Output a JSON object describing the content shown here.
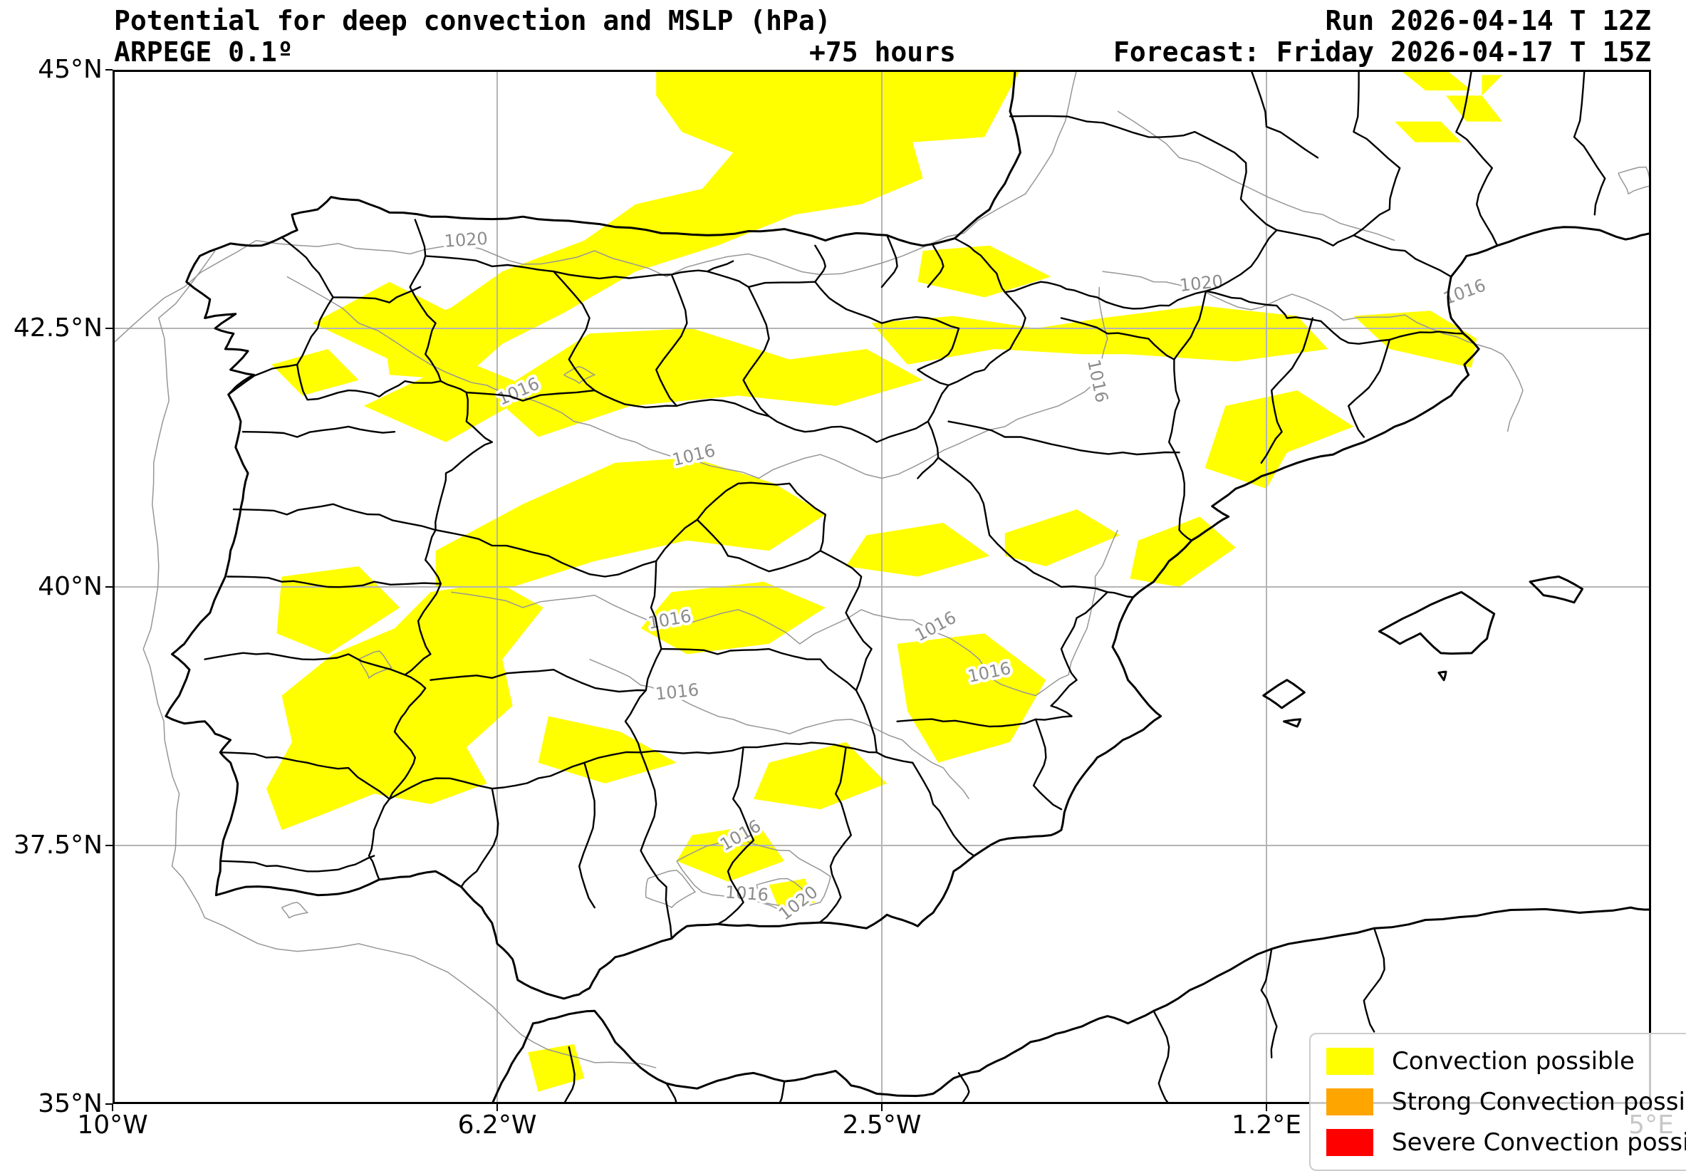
{
  "header": {
    "title": "Potential for deep convection and MSLP (hPa)",
    "model": "ARPEGE 0.1º",
    "lead_time": "+75 hours",
    "run": "Run 2026-04-14 T 12Z",
    "valid": "Forecast: Friday 2026-04-17 T 15Z"
  },
  "axes": {
    "lon_range": [
      -10,
      5
    ],
    "lat_range": [
      35,
      45
    ],
    "lon_ticks": [
      {
        "label": "10°W",
        "lon": -10
      },
      {
        "label": "6.2°W",
        "lon": -6.25
      },
      {
        "label": "2.5°W",
        "lon": -2.5
      },
      {
        "label": "1.2°E",
        "lon": 1.25
      },
      {
        "label": "5°E",
        "lon": 5
      }
    ],
    "lat_ticks": [
      {
        "label": "45°N",
        "lat": 45
      },
      {
        "label": "42.5°N",
        "lat": 42.5
      },
      {
        "label": "40°N",
        "lat": 40
      },
      {
        "label": "37.5°N",
        "lat": 37.5
      },
      {
        "label": "35°N",
        "lat": 35
      }
    ]
  },
  "legend": {
    "items": [
      {
        "label": "Convection possible",
        "color": "#ffff00"
      },
      {
        "label": "Strong Convection possible",
        "color": "#ffa500"
      },
      {
        "label": "Severe Convection possible",
        "color": "#ff0000"
      }
    ]
  },
  "map": {
    "colors": {
      "convection": "#ffff00",
      "isobar": "#969696",
      "isobar_label": "#8c8c8c",
      "boundary": "#000000",
      "grid": "#b4b4b4"
    },
    "grid": {
      "lons": [
        -6.25,
        -2.5,
        1.25
      ],
      "lats": [
        42.5,
        40,
        37.5
      ]
    },
    "isobar_labels": [
      {
        "text": "1020",
        "lon": -6.55,
        "lat": 43.3,
        "rot": -4
      },
      {
        "text": "1020",
        "lon": 0.62,
        "lat": 42.88,
        "rot": -6
      },
      {
        "text": "1016",
        "lon": -6.02,
        "lat": 41.84,
        "rot": -24
      },
      {
        "text": "1016",
        "lon": -4.32,
        "lat": 41.22,
        "rot": -14
      },
      {
        "text": "1016",
        "lon": -0.45,
        "lat": 41.98,
        "rot": 78
      },
      {
        "text": "1016",
        "lon": -4.56,
        "lat": 39.63,
        "rot": -10
      },
      {
        "text": "1016",
        "lon": -1.95,
        "lat": 39.57,
        "rot": -28
      },
      {
        "text": "1016",
        "lon": -1.44,
        "lat": 39.12,
        "rot": -12
      },
      {
        "text": "1016",
        "lon": -4.49,
        "lat": 38.93,
        "rot": -6
      },
      {
        "text": "1016",
        "lon": -3.85,
        "lat": 37.55,
        "rot": -30
      },
      {
        "text": "1016",
        "lon": -3.82,
        "lat": 36.98,
        "rot": 4
      },
      {
        "text": "1020",
        "lon": -3.28,
        "lat": 36.9,
        "rot": -38
      },
      {
        "text": "1016",
        "lon": 3.2,
        "lat": 42.8,
        "rot": -20
      }
    ],
    "isobars": [
      [
        [
          -10,
          42.35
        ],
        [
          -9.3,
          42.9
        ],
        [
          -8.6,
          43.35
        ],
        [
          -7.8,
          43.32
        ],
        [
          -7.1,
          43.22
        ],
        [
          -6.55,
          43.3
        ],
        [
          -6.0,
          43.12
        ],
        [
          -5.3,
          43.25
        ],
        [
          -4.6,
          43.0
        ],
        [
          -3.8,
          43.22
        ],
        [
          -3.1,
          43.02
        ],
        [
          -2.3,
          43.2
        ],
        [
          -1.7,
          43.42
        ],
        [
          -1.1,
          43.8
        ],
        [
          -0.78,
          44.35
        ],
        [
          -0.6,
          45.0
        ]
      ],
      [
        [
          -0.2,
          44.6
        ],
        [
          0.4,
          44.15
        ],
        [
          1.1,
          43.85
        ],
        [
          1.8,
          43.6
        ],
        [
          2.5,
          43.35
        ]
      ],
      [
        [
          -0.35,
          43.05
        ],
        [
          0.15,
          42.95
        ],
        [
          0.62,
          42.87
        ],
        [
          1.1,
          42.68
        ],
        [
          1.5,
          42.83
        ],
        [
          2.0,
          42.58
        ],
        [
          2.6,
          42.63
        ],
        [
          3.1,
          42.42
        ],
        [
          3.55,
          42.25
        ],
        [
          3.75,
          41.9
        ],
        [
          3.6,
          41.5
        ]
      ],
      [
        [
          -9.0,
          43.25
        ],
        [
          -9.55,
          42.6
        ],
        [
          -9.45,
          41.8
        ],
        [
          -9.6,
          41.0
        ],
        [
          -9.55,
          40.2
        ],
        [
          -9.7,
          39.4
        ],
        [
          -9.5,
          38.7
        ],
        [
          -9.35,
          38.0
        ],
        [
          -9.42,
          37.3
        ],
        [
          -9.1,
          36.8
        ],
        [
          -8.4,
          36.5
        ],
        [
          -7.6,
          36.55
        ],
        [
          -6.9,
          36.35
        ],
        [
          -6.3,
          35.95
        ],
        [
          -5.9,
          35.6
        ],
        [
          -5.3,
          35.4
        ],
        [
          -4.7,
          35.35
        ]
      ],
      [
        [
          -8.3,
          43.0
        ],
        [
          -7.6,
          42.55
        ],
        [
          -6.9,
          42.15
        ],
        [
          -6.35,
          41.95
        ],
        [
          -6.02,
          41.84
        ],
        [
          -5.5,
          41.6
        ],
        [
          -4.9,
          41.4
        ],
        [
          -4.32,
          41.22
        ],
        [
          -3.7,
          41.05
        ],
        [
          -3.1,
          41.28
        ],
        [
          -2.5,
          41.05
        ],
        [
          -1.9,
          41.32
        ],
        [
          -1.3,
          41.55
        ],
        [
          -0.78,
          41.75
        ],
        [
          -0.45,
          41.95
        ],
        [
          -0.3,
          42.4
        ],
        [
          -0.38,
          42.9
        ]
      ],
      [
        [
          -6.7,
          39.95
        ],
        [
          -6.0,
          39.8
        ],
        [
          -5.3,
          39.92
        ],
        [
          -4.56,
          39.63
        ],
        [
          -3.9,
          39.78
        ],
        [
          -3.3,
          39.45
        ],
        [
          -2.7,
          39.78
        ],
        [
          -2.2,
          39.68
        ],
        [
          -1.95,
          39.55
        ],
        [
          -1.55,
          39.3
        ],
        [
          -1.44,
          39.12
        ],
        [
          -1.0,
          38.95
        ],
        [
          -0.68,
          39.15
        ],
        [
          -0.5,
          39.6
        ],
        [
          -0.42,
          40.1
        ],
        [
          -0.2,
          40.55
        ]
      ],
      [
        [
          -5.35,
          39.3
        ],
        [
          -4.85,
          39.05
        ],
        [
          -4.49,
          38.93
        ],
        [
          -3.95,
          38.72
        ],
        [
          -3.4,
          38.58
        ],
        [
          -2.8,
          38.72
        ],
        [
          -2.3,
          38.52
        ],
        [
          -1.9,
          38.25
        ],
        [
          -1.65,
          37.95
        ]
      ],
      [
        [
          -4.5,
          37.35
        ],
        [
          -4.1,
          37.52
        ],
        [
          -3.85,
          37.55
        ],
        [
          -3.4,
          37.45
        ],
        [
          -3.0,
          37.2
        ],
        [
          -3.1,
          36.95
        ],
        [
          -3.5,
          36.88
        ],
        [
          -3.85,
          36.98
        ],
        [
          -4.25,
          37.05
        ],
        [
          -4.5,
          37.35
        ]
      ],
      [
        [
          -3.72,
          37.12
        ],
        [
          -3.42,
          37.18
        ],
        [
          -3.18,
          37.0
        ],
        [
          -3.35,
          36.88
        ],
        [
          -3.65,
          36.95
        ],
        [
          -3.72,
          37.12
        ]
      ],
      [
        [
          -5.6,
          42.05
        ],
        [
          -5.45,
          42.13
        ],
        [
          -5.3,
          42.05
        ],
        [
          -5.45,
          41.97
        ],
        [
          -5.6,
          42.05
        ]
      ],
      [
        [
          4.68,
          44.0
        ],
        [
          4.95,
          44.06
        ],
        [
          5.0,
          43.88
        ],
        [
          4.78,
          43.8
        ],
        [
          4.68,
          44.0
        ]
      ],
      [
        [
          -4.78,
          37.18
        ],
        [
          -4.5,
          37.26
        ],
        [
          -4.32,
          37.05
        ],
        [
          -4.55,
          36.9
        ],
        [
          -4.8,
          37.0
        ],
        [
          -4.78,
          37.18
        ]
      ],
      [
        [
          -7.6,
          39.3
        ],
        [
          -7.4,
          39.38
        ],
        [
          -7.28,
          39.22
        ],
        [
          -7.5,
          39.12
        ],
        [
          -7.6,
          39.3
        ]
      ],
      [
        [
          -8.35,
          36.9
        ],
        [
          -8.2,
          36.95
        ],
        [
          -8.1,
          36.85
        ],
        [
          -8.28,
          36.8
        ],
        [
          -8.35,
          36.9
        ]
      ]
    ],
    "convection_areas": [
      [
        [
          -4.7,
          45
        ],
        [
          -1.15,
          45
        ],
        [
          -1.5,
          44.35
        ],
        [
          -2.2,
          44.3
        ],
        [
          -2.1,
          43.95
        ],
        [
          -2.7,
          43.7
        ],
        [
          -3.35,
          43.6
        ],
        [
          -4.1,
          43.3
        ],
        [
          -4.9,
          43.05
        ],
        [
          -5.6,
          42.65
        ],
        [
          -6.2,
          42.35
        ],
        [
          -6.6,
          42.0
        ],
        [
          -7.3,
          42.05
        ],
        [
          -7.35,
          42.45
        ],
        [
          -6.7,
          42.7
        ],
        [
          -6.2,
          43.05
        ],
        [
          -5.4,
          43.35
        ],
        [
          -4.9,
          43.7
        ],
        [
          -4.25,
          43.85
        ],
        [
          -3.95,
          44.2
        ],
        [
          -4.45,
          44.4
        ],
        [
          -4.7,
          44.75
        ]
      ],
      [
        [
          -2.1,
          43.25
        ],
        [
          -1.45,
          43.3
        ],
        [
          -0.85,
          43.0
        ],
        [
          -1.5,
          42.8
        ],
        [
          -2.15,
          42.95
        ]
      ],
      [
        [
          -2.6,
          42.55
        ],
        [
          -1.8,
          42.62
        ],
        [
          -1.0,
          42.5
        ],
        [
          -0.35,
          42.6
        ],
        [
          -0.55,
          42.25
        ],
        [
          -1.4,
          42.3
        ],
        [
          -2.25,
          42.15
        ]
      ],
      [
        [
          -0.35,
          42.6
        ],
        [
          0.6,
          42.72
        ],
        [
          1.55,
          42.62
        ],
        [
          1.85,
          42.3
        ],
        [
          0.95,
          42.18
        ],
        [
          -0.1,
          42.25
        ],
        [
          -0.55,
          42.25
        ]
      ],
      [
        [
          2.1,
          42.62
        ],
        [
          2.85,
          42.67
        ],
        [
          3.3,
          42.4
        ],
        [
          3.25,
          42.12
        ],
        [
          2.45,
          42.3
        ]
      ],
      [
        [
          -8.05,
          42.55
        ],
        [
          -7.3,
          42.95
        ],
        [
          -6.6,
          42.6
        ],
        [
          -7.3,
          42.2
        ]
      ],
      [
        [
          -8.45,
          42.15
        ],
        [
          -7.9,
          42.3
        ],
        [
          -7.6,
          42.0
        ],
        [
          -8.15,
          41.85
        ]
      ],
      [
        [
          -7.55,
          41.75
        ],
        [
          -6.6,
          42.2
        ],
        [
          -5.85,
          41.9
        ],
        [
          -6.75,
          41.4
        ]
      ],
      [
        [
          -6.3,
          41.85
        ],
        [
          -5.35,
          42.45
        ],
        [
          -4.35,
          42.5
        ],
        [
          -3.4,
          42.2
        ],
        [
          -2.65,
          42.3
        ],
        [
          -2.1,
          42.0
        ],
        [
          -2.95,
          41.75
        ],
        [
          -3.9,
          41.85
        ],
        [
          -4.95,
          41.75
        ],
        [
          -5.85,
          41.45
        ]
      ],
      [
        [
          -6.85,
          40.35
        ],
        [
          -6.0,
          40.8
        ],
        [
          -5.1,
          41.2
        ],
        [
          -4.35,
          41.25
        ],
        [
          -3.55,
          41.0
        ],
        [
          -3.05,
          40.7
        ],
        [
          -3.6,
          40.35
        ],
        [
          -4.4,
          40.45
        ],
        [
          -5.3,
          40.25
        ],
        [
          -6.1,
          40.0
        ],
        [
          -6.85,
          40.0
        ]
      ],
      [
        [
          -4.55,
          39.95
        ],
        [
          -3.65,
          40.05
        ],
        [
          -3.05,
          39.8
        ],
        [
          -3.6,
          39.45
        ],
        [
          -4.4,
          39.35
        ],
        [
          -4.85,
          39.6
        ]
      ],
      [
        [
          -2.65,
          40.5
        ],
        [
          -1.9,
          40.62
        ],
        [
          -1.45,
          40.3
        ],
        [
          -2.15,
          40.1
        ],
        [
          -2.85,
          40.2
        ]
      ],
      [
        [
          -1.3,
          40.52
        ],
        [
          -0.6,
          40.75
        ],
        [
          -0.18,
          40.5
        ],
        [
          -0.9,
          40.2
        ],
        [
          -1.3,
          40.3
        ]
      ],
      [
        [
          0.0,
          40.45
        ],
        [
          0.6,
          40.68
        ],
        [
          0.95,
          40.38
        ],
        [
          0.4,
          40.0
        ],
        [
          -0.08,
          40.08
        ]
      ],
      [
        [
          0.85,
          41.75
        ],
        [
          1.55,
          41.9
        ],
        [
          2.1,
          41.55
        ],
        [
          1.45,
          41.3
        ],
        [
          1.25,
          40.95
        ],
        [
          0.65,
          41.15
        ]
      ],
      [
        [
          -8.5,
          38.05
        ],
        [
          -8.25,
          38.5
        ],
        [
          -8.35,
          38.95
        ],
        [
          -7.85,
          39.35
        ],
        [
          -7.25,
          39.6
        ],
        [
          -6.9,
          39.95
        ],
        [
          -6.25,
          40.05
        ],
        [
          -5.8,
          39.8
        ],
        [
          -6.2,
          39.3
        ],
        [
          -6.1,
          38.85
        ],
        [
          -6.55,
          38.45
        ],
        [
          -6.35,
          38.1
        ],
        [
          -6.9,
          37.9
        ],
        [
          -7.45,
          38.0
        ],
        [
          -7.95,
          37.8
        ],
        [
          -8.35,
          37.65
        ]
      ],
      [
        [
          -8.35,
          40.1
        ],
        [
          -7.6,
          40.2
        ],
        [
          -7.2,
          39.8
        ],
        [
          -7.9,
          39.35
        ],
        [
          -8.4,
          39.55
        ]
      ],
      [
        [
          -5.75,
          38.75
        ],
        [
          -5.05,
          38.6
        ],
        [
          -4.5,
          38.3
        ],
        [
          -5.2,
          38.1
        ],
        [
          -5.85,
          38.3
        ]
      ],
      [
        [
          -3.6,
          38.3
        ],
        [
          -2.85,
          38.5
        ],
        [
          -2.45,
          38.1
        ],
        [
          -3.1,
          37.85
        ],
        [
          -3.75,
          37.95
        ]
      ],
      [
        [
          -2.35,
          39.45
        ],
        [
          -1.5,
          39.55
        ],
        [
          -0.9,
          39.1
        ],
        [
          -1.25,
          38.5
        ],
        [
          -1.95,
          38.3
        ],
        [
          -2.25,
          38.8
        ]
      ],
      [
        [
          -4.35,
          37.6
        ],
        [
          -3.7,
          37.7
        ],
        [
          -3.45,
          37.35
        ],
        [
          -4.0,
          37.15
        ],
        [
          -4.5,
          37.35
        ]
      ],
      [
        [
          -3.6,
          37.12
        ],
        [
          -3.25,
          37.18
        ],
        [
          -3.15,
          36.95
        ],
        [
          -3.5,
          36.88
        ]
      ],
      [
        [
          -5.95,
          35.5
        ],
        [
          -5.5,
          35.58
        ],
        [
          -5.4,
          35.25
        ],
        [
          -5.85,
          35.12
        ]
      ],
      [
        [
          2.55,
          45
        ],
        [
          3.0,
          45
        ],
        [
          3.25,
          44.8
        ],
        [
          2.8,
          44.8
        ]
      ],
      [
        [
          3.0,
          44.75
        ],
        [
          3.35,
          44.75
        ],
        [
          3.55,
          44.5
        ],
        [
          3.2,
          44.5
        ]
      ],
      [
        [
          2.5,
          44.5
        ],
        [
          2.95,
          44.5
        ],
        [
          3.15,
          44.3
        ],
        [
          2.7,
          44.3
        ]
      ],
      [
        [
          3.35,
          44.95
        ],
        [
          3.55,
          44.95
        ],
        [
          3.35,
          44.75
        ]
      ]
    ]
  }
}
